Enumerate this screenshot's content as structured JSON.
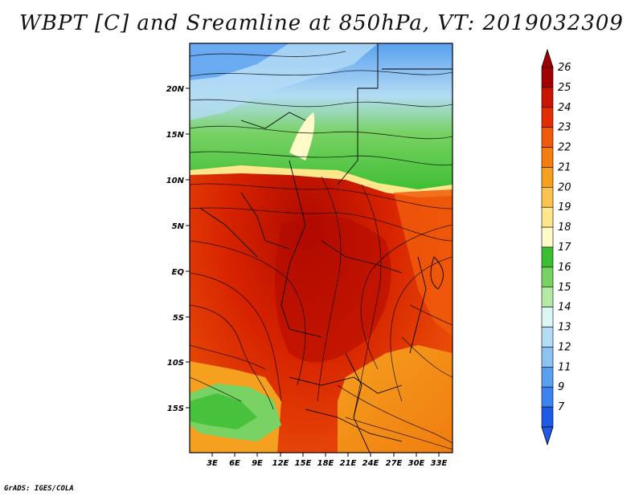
{
  "title": "WBPT [C] and Sreamline at 850hPa, VT: 2019032309",
  "credit": "GrADS: IGES/COLA",
  "map": {
    "variable": "WBPT",
    "units": "C",
    "level": "850hPa",
    "valid_time": "2019032309",
    "lat_ticks": [
      "20N",
      "15N",
      "10N",
      "5N",
      "EQ",
      "5S",
      "10S",
      "15S"
    ],
    "lon_ticks": [
      "3E",
      "6E",
      "9E",
      "12E",
      "15E",
      "18E",
      "21E",
      "24E",
      "27E",
      "30E",
      "33E"
    ]
  },
  "colorbar": {
    "labels": [
      "26",
      "25",
      "24",
      "23",
      "22",
      "21",
      "20",
      "19",
      "18",
      "17",
      "16",
      "15",
      "14",
      "13",
      "12",
      "11",
      "9",
      "7"
    ],
    "colors": [
      "#a00000",
      "#c81400",
      "#e12d00",
      "#f05a0a",
      "#f57d0f",
      "#f5a01e",
      "#fac350",
      "#fde68c",
      "#fffac8",
      "#3cbe32",
      "#78d264",
      "#b4eaa5",
      "#dcf5f5",
      "#b4dcf5",
      "#8cc3f0",
      "#5aa0f0",
      "#3c82f0",
      "#1e5ae6"
    ]
  }
}
